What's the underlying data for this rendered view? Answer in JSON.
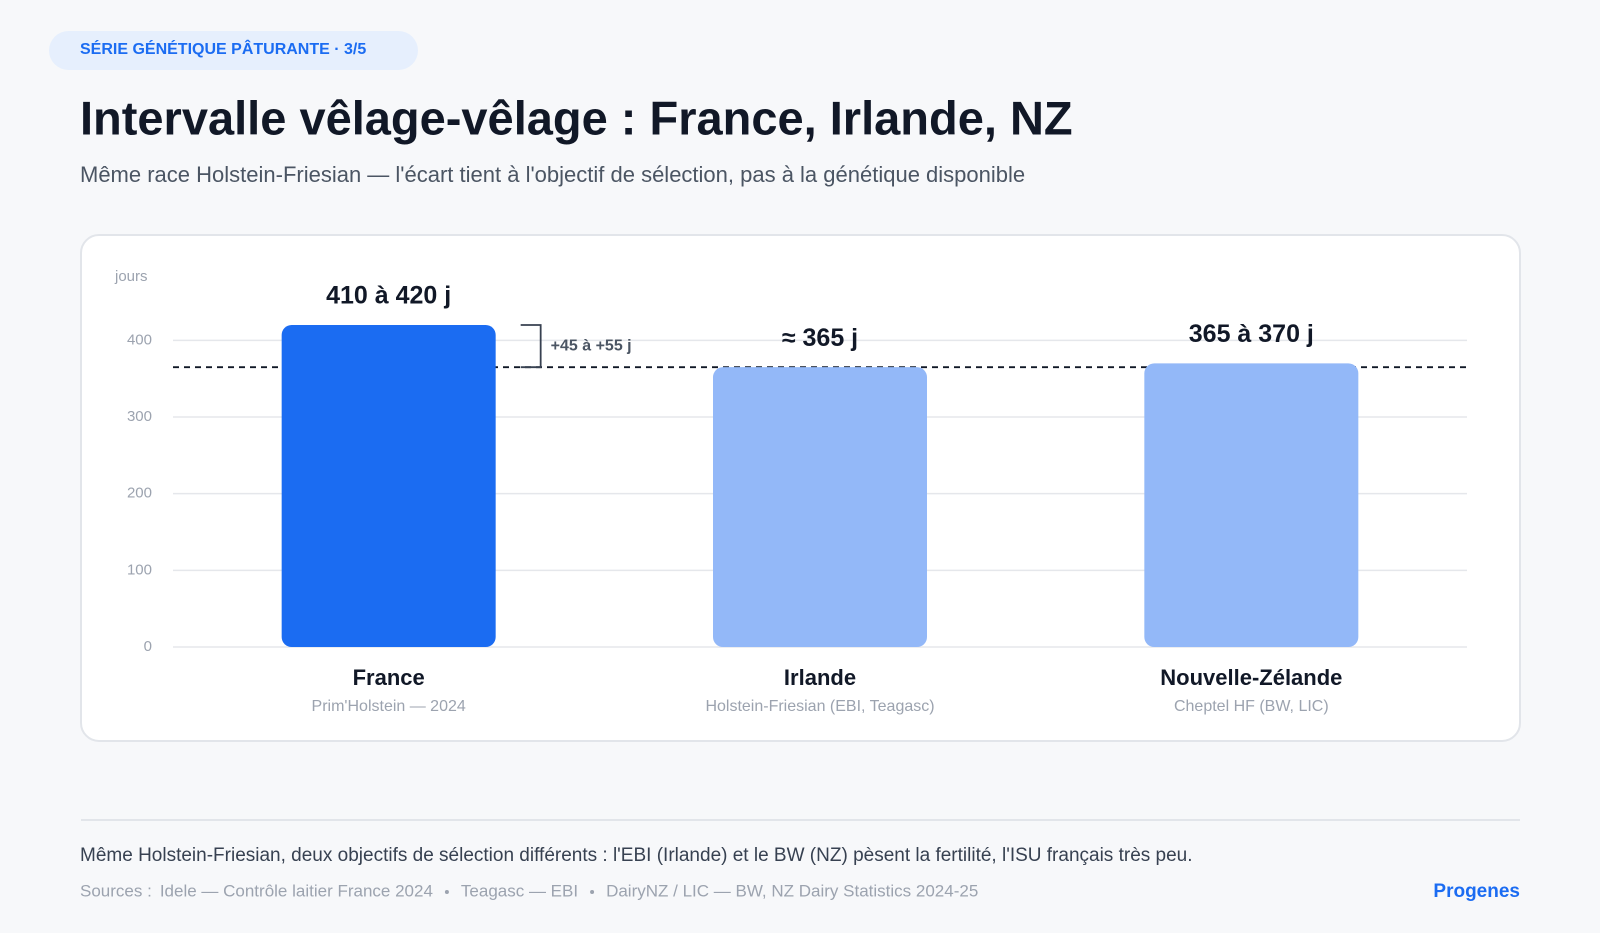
{
  "badge": "SÉRIE GÉNÉTIQUE PÂTURANTE · 3/5",
  "title": "Intervalle vêlage-vêlage : France, Irlande, NZ",
  "subtitle": "Même race Holstein-Friesian — l'écart tient à l'objectif de sélection, pas à la génétique disponible",
  "chart_data": {
    "type": "bar",
    "y_label": "jours",
    "categories": [
      "France",
      "Irlande",
      "Nouvelle-Zélande"
    ],
    "category_notes": [
      "Prim'Holstein — 2024",
      "Holstein-Friesian (EBI, Teagasc)",
      "Cheptel HF (BW, LIC)"
    ],
    "values": [
      420,
      365,
      370
    ],
    "value_labels": [
      "410 à 420 j",
      "≈ 365 j",
      "365 à 370 j"
    ],
    "colors": [
      "#1b6cf2",
      "#93b8f8",
      "#93b8f8"
    ],
    "reference_line": 365,
    "annotation": "+45 à +55 j",
    "ylim": [
      0,
      420
    ],
    "yticks": [
      0,
      100,
      200,
      300,
      400
    ],
    "grid": true
  },
  "footnote": "Même Holstein-Friesian, deux objectifs de sélection différents : l'EBI (Irlande) et le BW (NZ) pèsent la fertilité, l'ISU français très peu.",
  "sources_label": "Sources :",
  "sources": [
    "Idele — Contrôle laitier France 2024",
    "Teagasc — EBI",
    "DairyNZ / LIC — BW, NZ Dairy Statistics 2024-25"
  ],
  "brand": "Progenes"
}
